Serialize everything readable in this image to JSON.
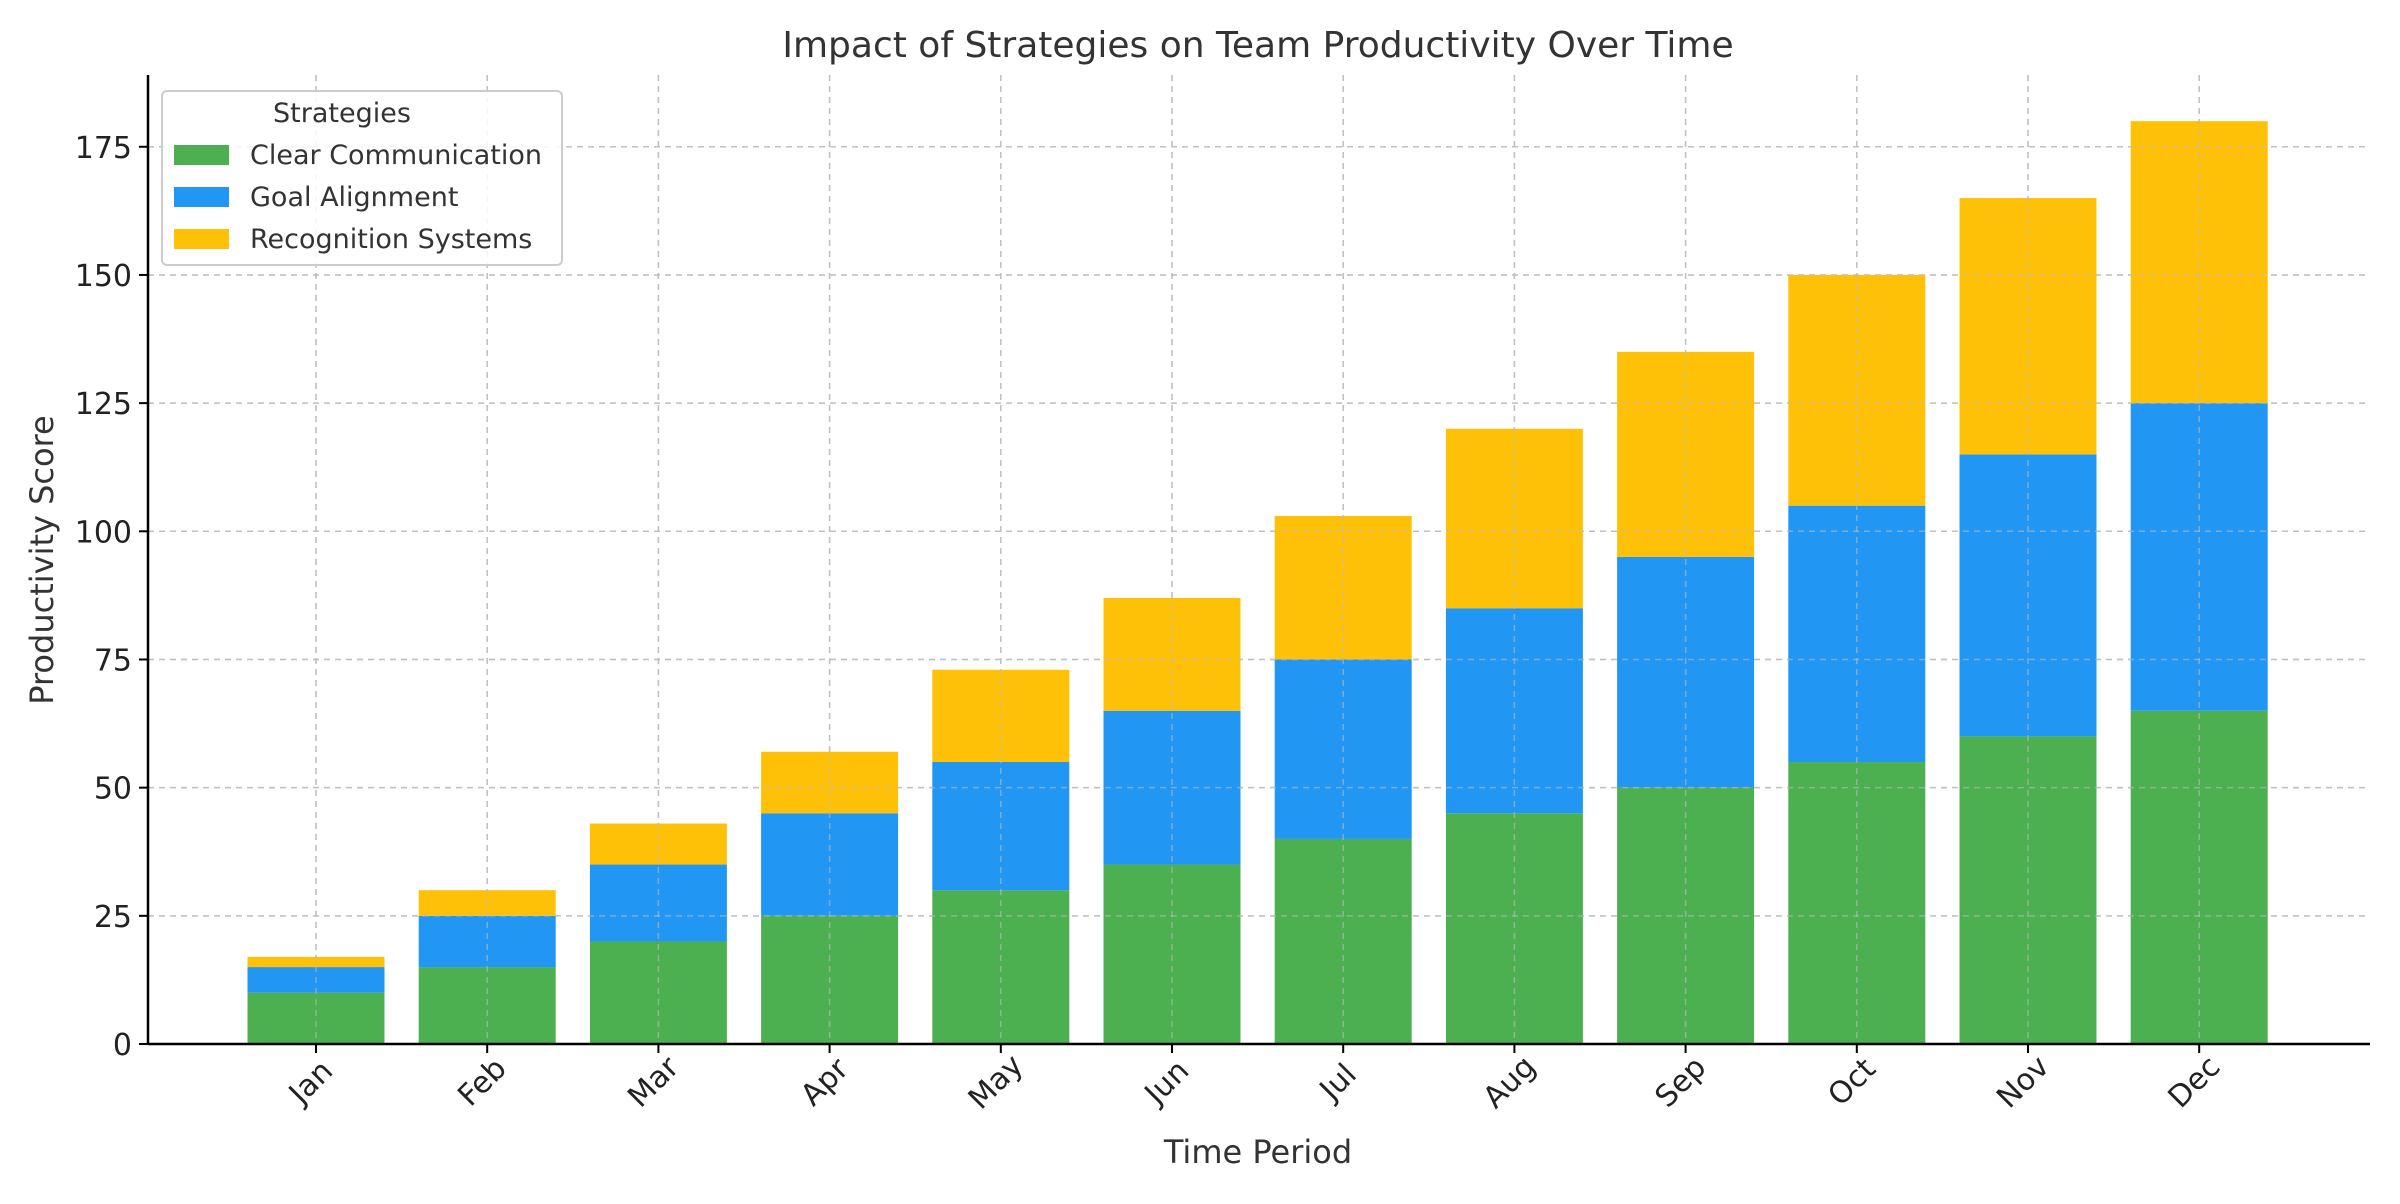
{
  "chart_data": {
    "type": "bar",
    "stacked": true,
    "title": "Impact of Strategies on Team Productivity Over Time",
    "xlabel": "Time Period",
    "ylabel": "Productivity Score",
    "categories": [
      "Jan",
      "Feb",
      "Mar",
      "Apr",
      "May",
      "Jun",
      "Jul",
      "Aug",
      "Sep",
      "Oct",
      "Nov",
      "Dec"
    ],
    "series": [
      {
        "name": "Clear Communication",
        "color": "#4caf50",
        "values": [
          10,
          15,
          20,
          25,
          30,
          35,
          40,
          45,
          50,
          55,
          60,
          65
        ]
      },
      {
        "name": "Goal Alignment",
        "color": "#2196f3",
        "values": [
          5,
          10,
          15,
          20,
          25,
          30,
          35,
          40,
          45,
          50,
          55,
          60
        ]
      },
      {
        "name": "Recognition Systems",
        "color": "#ffc107",
        "values": [
          2,
          5,
          8,
          12,
          18,
          22,
          28,
          35,
          40,
          45,
          50,
          55
        ]
      }
    ],
    "ylim": [
      0,
      189
    ],
    "yticks": [
      0,
      25,
      50,
      75,
      100,
      125,
      150,
      175
    ],
    "grid": true,
    "legend": {
      "title": "Strategies",
      "placement": "top-left"
    }
  }
}
